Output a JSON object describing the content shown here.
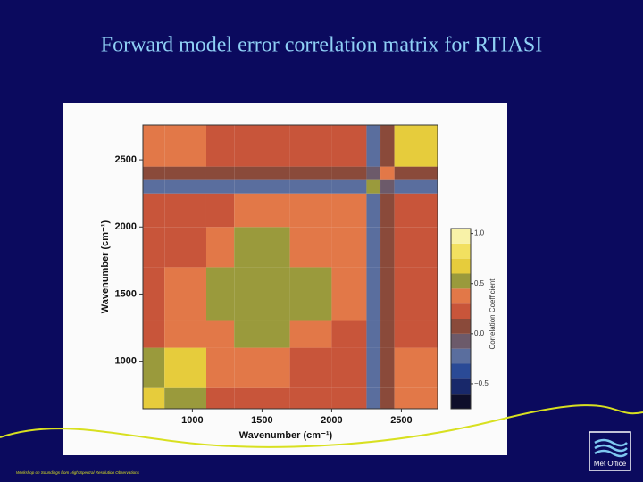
{
  "chart_data": {
    "type": "heatmap",
    "title": "Forward model error correlation matrix for RTIASI",
    "x_label": "Wavenumber (cm⁻¹)",
    "y_label": "Wavenumber (cm⁻¹)",
    "colorbar_label": "Correlation Coefficient",
    "x_bins": [
      645,
      800,
      1100,
      1300,
      1700,
      2000,
      2250,
      2350,
      2450,
      2760
    ],
    "y_bins": [
      645,
      800,
      1100,
      1300,
      1700,
      2000,
      2250,
      2350,
      2450,
      2760
    ],
    "z": [
      [
        0.6,
        0.5,
        0.25,
        0.25,
        0.25,
        0.25,
        -0.2,
        0.1,
        0.3
      ],
      [
        0.5,
        0.65,
        0.3,
        0.3,
        0.25,
        0.25,
        -0.2,
        0.1,
        0.4
      ],
      [
        0.25,
        0.3,
        0.4,
        0.45,
        0.3,
        0.25,
        -0.2,
        0.1,
        0.25
      ],
      [
        0.25,
        0.3,
        0.45,
        0.55,
        0.45,
        0.3,
        -0.2,
        0.1,
        0.25
      ],
      [
        0.25,
        0.25,
        0.3,
        0.45,
        0.4,
        0.3,
        -0.2,
        0.1,
        0.25
      ],
      [
        0.25,
        0.25,
        0.25,
        0.3,
        0.3,
        0.3,
        -0.2,
        0.1,
        0.25
      ],
      [
        -0.2,
        -0.2,
        -0.2,
        -0.2,
        -0.2,
        -0.2,
        0.5,
        -0.1,
        -0.2
      ],
      [
        0.1,
        0.1,
        0.1,
        0.1,
        0.1,
        0.1,
        -0.1,
        0.4,
        0.1
      ],
      [
        0.3,
        0.4,
        0.25,
        0.25,
        0.25,
        0.25,
        -0.2,
        0.1,
        0.7
      ]
    ],
    "xlim": [
      645,
      2760
    ],
    "ylim": [
      645,
      2760
    ],
    "xticks": [
      1000,
      1500,
      2000,
      2500
    ],
    "yticks": [
      1000,
      1500,
      2000,
      2500
    ],
    "colorbar": {
      "levels": [
        -0.75,
        -0.6,
        -0.45,
        -0.3,
        -0.15,
        0,
        0.15,
        0.3,
        0.45,
        0.6,
        0.75,
        0.9,
        1.05
      ],
      "colors": [
        "#0e0e2a",
        "#18286a",
        "#2a4a96",
        "#5a6e9e",
        "#6c5a6a",
        "#8a4a3a",
        "#c8553a",
        "#e27848",
        "#9a9a3c",
        "#e6cc3c",
        "#f2e060",
        "#f8f2a8"
      ],
      "ticks": [
        {
          "value": 1.0,
          "label": "1.0"
        },
        {
          "value": 0.5,
          "label": "0.5"
        },
        {
          "value": 0,
          "label": "0.0"
        },
        {
          "value": -0.5,
          "label": "−0.5"
        }
      ]
    }
  },
  "footer": "Workshop on Soundings from High Spectral Resolution Observations",
  "logo": "Met Office"
}
